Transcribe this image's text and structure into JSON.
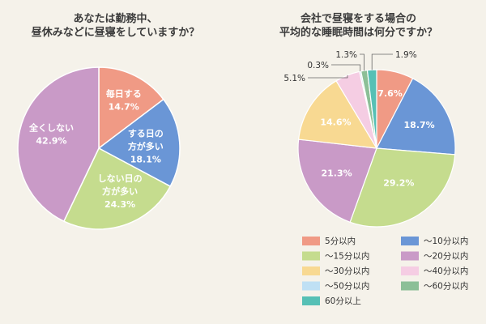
{
  "chart_data": [
    {
      "type": "pie",
      "title_lines": [
        "あなたは勤務中、",
        "昼休みなどに昼寝をしていますか？"
      ],
      "slices": [
        {
          "name_lines": [
            "毎日する"
          ],
          "value": 14.7,
          "value_text": "14.7%",
          "color": "#f09a85"
        },
        {
          "name_lines": [
            "する日の",
            "方が多い"
          ],
          "value": 18.1,
          "value_text": "18.1%",
          "color": "#6a96d6"
        },
        {
          "name_lines": [
            "しない日の",
            "方が多い"
          ],
          "value": 24.3,
          "value_text": "24.3%",
          "color": "#c5dc8e"
        },
        {
          "name_lines": [
            "全くしない"
          ],
          "value": 42.9,
          "value_text": "42.9%",
          "color": "#c99ac7"
        }
      ]
    },
    {
      "type": "pie",
      "title_lines": [
        "会社で昼寝をする場合の",
        "平均的な睡眠時間は何分ですか？"
      ],
      "slices": [
        {
          "name": "5分以内",
          "value": 7.6,
          "value_text": "7.6%",
          "color": "#f09a85"
        },
        {
          "name": "～10分以内",
          "value": 18.7,
          "value_text": "18.7%",
          "color": "#6a96d6"
        },
        {
          "name": "～15分以内",
          "value": 29.2,
          "value_text": "29.2%",
          "color": "#c5dc8e"
        },
        {
          "name": "～20分以内",
          "value": 21.3,
          "value_text": "21.3%",
          "color": "#c99ac7"
        },
        {
          "name": "～30分以内",
          "value": 14.6,
          "value_text": "14.6%",
          "color": "#f8d992"
        },
        {
          "name": "～40分以内",
          "value": 5.1,
          "value_text": "5.1%",
          "color": "#f5cde3"
        },
        {
          "name": "～50分以内",
          "value": 0.3,
          "value_text": "0.3%",
          "color": "#bfe0f4"
        },
        {
          "name": "～60分以内",
          "value": 1.3,
          "value_text": "1.3%",
          "color": "#8cbf97"
        },
        {
          "name": "60分以上",
          "value": 1.9,
          "value_text": "1.9%",
          "color": "#56c0b5"
        }
      ]
    }
  ]
}
